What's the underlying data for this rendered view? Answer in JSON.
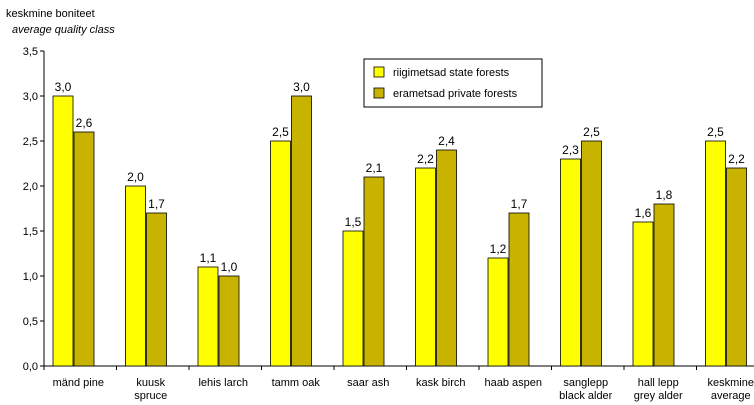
{
  "chart_data": {
    "type": "bar",
    "ylabel": "keskmine boniteet",
    "ylabel_secondary": "average quality class",
    "ylim": [
      0,
      3.5
    ],
    "ytick_step": 0.5,
    "ytick_labels": [
      "0,0",
      "0,5",
      "1,0",
      "1,5",
      "2,0",
      "2,5",
      "3,0",
      "3,5"
    ],
    "grid": false,
    "legend_position": "top-right",
    "categories": [
      [
        "mänd pine"
      ],
      [
        "kuusk",
        "spruce"
      ],
      [
        "lehis larch"
      ],
      [
        "tamm oak"
      ],
      [
        "saar ash"
      ],
      [
        "kask birch"
      ],
      [
        "haab aspen"
      ],
      [
        "sanglepp",
        "black alder"
      ],
      [
        "hall lepp",
        "grey alder"
      ],
      [
        "keskmine",
        "average"
      ]
    ],
    "series": [
      {
        "name": "riigimetsad state forests",
        "color": "#ffff00",
        "values": [
          3.0,
          2.0,
          1.1,
          2.5,
          1.5,
          2.2,
          1.2,
          2.3,
          1.6,
          2.5
        ],
        "labels": [
          "3,0",
          "2,0",
          "1,1",
          "2,5",
          "1,5",
          "2,2",
          "1,2",
          "2,3",
          "1,6",
          "2,5"
        ]
      },
      {
        "name": "erametsad private forests",
        "color": "#c8b400",
        "values": [
          2.6,
          1.7,
          1.0,
          3.0,
          2.1,
          2.4,
          1.7,
          2.5,
          1.8,
          2.2
        ],
        "labels": [
          "2,6",
          "1,7",
          "1,0",
          "3,0",
          "2,1",
          "2,4",
          "1,7",
          "2,5",
          "1,8",
          "2,2"
        ]
      }
    ]
  }
}
